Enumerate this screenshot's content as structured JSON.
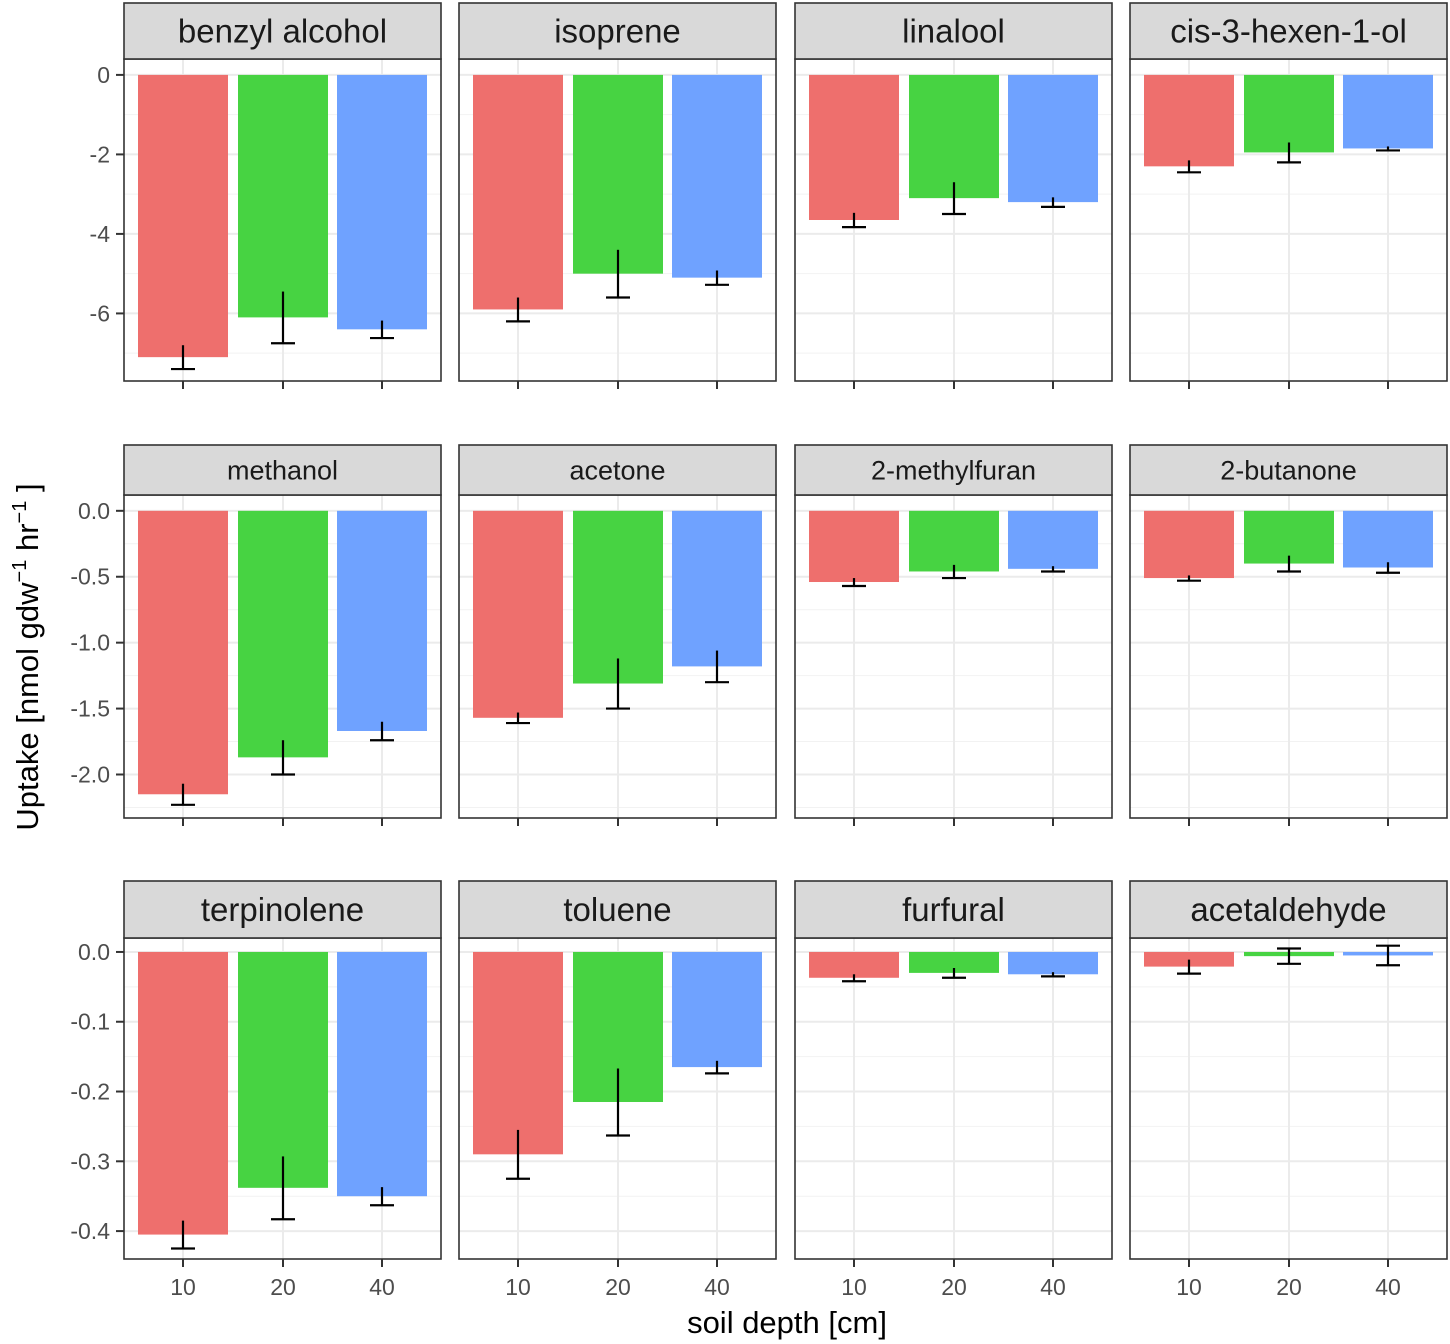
{
  "chart_data": {
    "type": "bar",
    "facet_layout": "3 rows x 4 columns, free y within each row",
    "xlabel": "soil depth [cm]",
    "ylabel": {
      "prefix": "Uptake [nmol gdw",
      "sup1": "−1",
      "middle": " hr",
      "sup2": "−1",
      "suffix": " ]"
    },
    "categories": [
      "10",
      "20",
      "40"
    ],
    "colors": [
      "#EE6F6D",
      "#47D342",
      "#6FA2FF"
    ],
    "rows": [
      {
        "ylim": [
          -7.7,
          0.4
        ],
        "yticks": [
          0,
          -2,
          -4,
          -6
        ],
        "ytick_labels": [
          "0",
          "-2",
          "-4",
          "-6"
        ],
        "panels": [
          {
            "title": "benzyl alcohol",
            "values": [
              -7.1,
              -6.1,
              -6.4
            ],
            "errors": [
              0.3,
              0.65,
              0.22
            ]
          },
          {
            "title": "isoprene",
            "values": [
              -5.9,
              -5.0,
              -5.1
            ],
            "errors": [
              0.3,
              0.6,
              0.18
            ]
          },
          {
            "title": "linalool",
            "values": [
              -3.65,
              -3.1,
              -3.2
            ],
            "errors": [
              0.18,
              0.4,
              0.12
            ]
          },
          {
            "title": "cis-3-hexen-1-ol",
            "values": [
              -2.3,
              -1.95,
              -1.85
            ],
            "errors": [
              0.15,
              0.25,
              0.05
            ]
          }
        ]
      },
      {
        "ylim": [
          -2.33,
          0.12
        ],
        "yticks": [
          0,
          -0.5,
          -1.0,
          -1.5,
          -2.0
        ],
        "ytick_labels": [
          "0.0",
          "-0.5",
          "-1.0",
          "-1.5",
          "-2.0"
        ],
        "panels": [
          {
            "title": "methanol",
            "values": [
              -2.15,
              -1.87,
              -1.67
            ],
            "errors": [
              0.08,
              0.13,
              0.07
            ]
          },
          {
            "title": "acetone",
            "values": [
              -1.57,
              -1.31,
              -1.18
            ],
            "errors": [
              0.04,
              0.19,
              0.12
            ]
          },
          {
            "title": "2-methylfuran",
            "values": [
              -0.54,
              -0.46,
              -0.44
            ],
            "errors": [
              0.03,
              0.05,
              0.02
            ]
          },
          {
            "title": "2-butanone",
            "values": [
              -0.51,
              -0.4,
              -0.43
            ],
            "errors": [
              0.02,
              0.06,
              0.04
            ]
          }
        ]
      },
      {
        "ylim": [
          -0.44,
          0.02
        ],
        "yticks": [
          0,
          -0.1,
          -0.2,
          -0.3,
          -0.4
        ],
        "ytick_labels": [
          "0.0",
          "-0.1",
          "-0.2",
          "-0.3",
          "-0.4"
        ],
        "panels": [
          {
            "title": "terpinolene",
            "values": [
              -0.405,
              -0.338,
              -0.35
            ],
            "errors": [
              0.02,
              0.045,
              0.013
            ]
          },
          {
            "title": "toluene",
            "values": [
              -0.29,
              -0.215,
              -0.165
            ],
            "errors": [
              0.035,
              0.048,
              0.009
            ]
          },
          {
            "title": "furfural",
            "values": [
              -0.037,
              -0.03,
              -0.032
            ],
            "errors": [
              0.005,
              0.007,
              0.003
            ]
          },
          {
            "title": "acetaldehyde",
            "values": [
              -0.021,
              -0.006,
              -0.005
            ],
            "errors": [
              0.01,
              0.011,
              0.014
            ]
          }
        ]
      }
    ]
  }
}
